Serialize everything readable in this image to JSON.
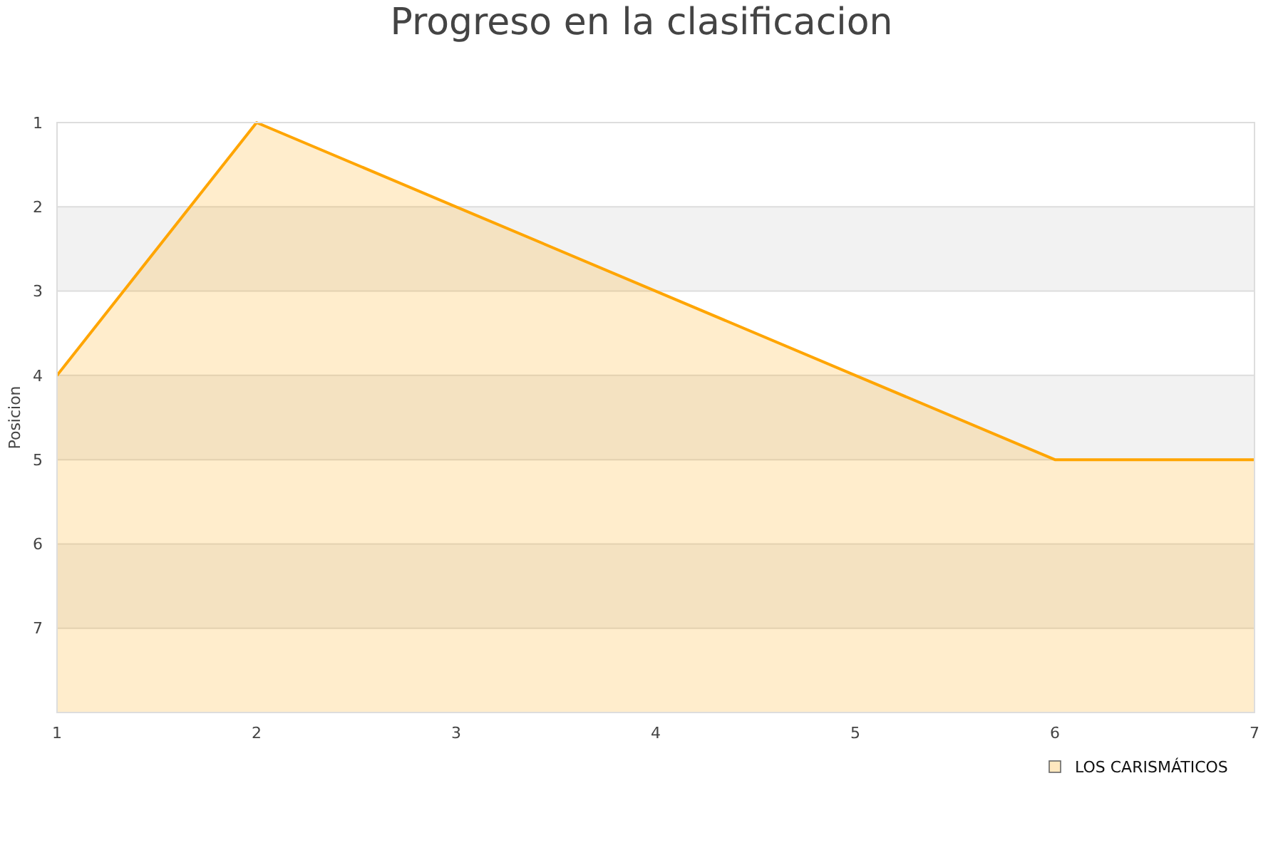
{
  "chart_data": {
    "type": "area",
    "title": "Progreso en la clasificacion",
    "ylabel": "Posicion",
    "x": [
      1,
      2,
      3,
      4,
      5,
      6,
      7
    ],
    "series": [
      {
        "name": "LOS CARISMÁTICOS",
        "color": "#ffa500",
        "values": [
          4,
          1,
          2,
          3,
          4,
          5,
          5
        ]
      }
    ],
    "xlim": [
      1,
      7
    ],
    "xticks": [
      1,
      2,
      3,
      4,
      5,
      6,
      7
    ],
    "ylim": [
      8,
      1
    ],
    "yticks": [
      1,
      2,
      3,
      4,
      5,
      6,
      7,
      {
        "value": 8,
        "label": null
      }
    ],
    "grid": "y",
    "bands": [
      {
        "axis": "y",
        "from": 2,
        "to": 3,
        "color": "#f2f2f2"
      },
      {
        "axis": "y",
        "from": 4,
        "to": 5,
        "color": "#f2f2f2"
      },
      {
        "axis": "y",
        "from": 6,
        "to": 7,
        "color": "#f2f2f2"
      }
    ],
    "legend": "bottom right"
  }
}
